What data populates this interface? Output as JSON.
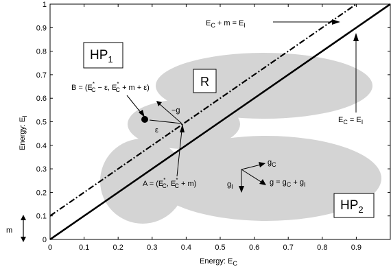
{
  "colors": {
    "region_fill": "#d4d4d4",
    "line": "#000000",
    "background": "#ffffff"
  },
  "axes": {
    "x_title": "Energy: E",
    "x_title_sub": "C",
    "y_title": "Energy: E",
    "y_title_sub": "I",
    "x_ticks": [
      "0",
      "0.1",
      "0.2",
      "0.3",
      "0.4",
      "0.5",
      "0.6",
      "0.7",
      "0.8",
      "0.9",
      "1"
    ],
    "y_ticks": [
      "0",
      "0.1",
      "0.2",
      "0.3",
      "0.4",
      "0.5",
      "0.6",
      "0.7",
      "0.8",
      "0.9",
      "1"
    ],
    "xlim": [
      0,
      1
    ],
    "ylim": [
      0,
      1
    ]
  },
  "lines": {
    "dashed_label": {
      "a": "E",
      "a_sub": "C",
      "b": " + m = E",
      "b_sub": "I"
    },
    "solid_label": {
      "a": "E",
      "a_sub": "C",
      "b": " = E",
      "b_sub": "I"
    },
    "offset_m": 0.1
  },
  "boxes": {
    "hp1": {
      "main": "HP",
      "sub": "1"
    },
    "hp2": {
      "main": "HP",
      "sub": "2"
    },
    "r": "R"
  },
  "point_b": {
    "text1": "B = (E",
    "sup1": "*",
    "sub1": "C",
    "text2": " − ε, E",
    "sup2": "*",
    "sub2": "C",
    "text3": " + m + ε)"
  },
  "point_a": {
    "text1": "A = (E",
    "sup1": "*",
    "sub1": "C",
    "text2": ", E",
    "sup2": "*",
    "sub2": "C",
    "text3": " + m)"
  },
  "labels": {
    "neg_g": "−g",
    "epsilon": "ε",
    "g_c": "g",
    "g_c_sub": "C",
    "g_i": "g",
    "g_i_sub": "I",
    "g_sum": "g = g",
    "g_sum_sub1": "C",
    "g_sum_mid": " + g",
    "g_sum_sub2": "I",
    "m": "m"
  }
}
